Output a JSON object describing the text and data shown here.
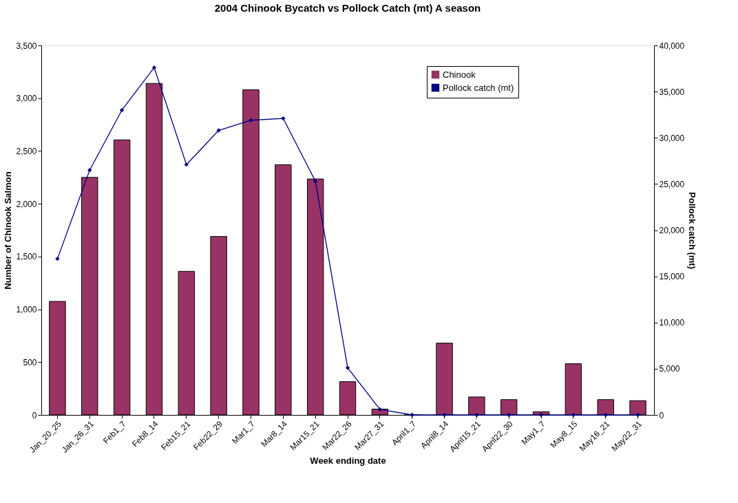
{
  "chart_data": {
    "type": "bar",
    "title": "2004 Chinook Bycatch vs Pollock Catch (mt) A season",
    "xlabel": "Week ending date",
    "ylabel": "Number of Chinook Salmon",
    "y2label": "Pollock catch (mt)",
    "categories": [
      "Jan_20_25",
      "Jan_26_31",
      "Feb1_7",
      "Feb8_14",
      "Feb15_21",
      "Feb22_29",
      "Mar1_7",
      "Mar8_14",
      "Mar15_21",
      "Mar22_26",
      "Mar27_31",
      "April1_7",
      "April8_14",
      "April15_21",
      "April22_30",
      "May1_7",
      "May8_15",
      "May16_21",
      "May22_31"
    ],
    "series": [
      {
        "name": "Chinook",
        "color": "#993366",
        "values": [
          1075,
          2250,
          2605,
          3140,
          1360,
          1690,
          3080,
          2370,
          2235,
          315,
          55,
          0,
          680,
          170,
          145,
          30,
          485,
          145,
          135
        ]
      },
      {
        "name": "Pollock catch (mt)",
        "type": "line",
        "axis": "y2",
        "color": "#000080",
        "marker": "diamond",
        "values": [
          16900,
          26500,
          33000,
          37600,
          27100,
          30800,
          31900,
          32100,
          25300,
          5100,
          600,
          0,
          0,
          0,
          0,
          0,
          0,
          0,
          0
        ]
      }
    ],
    "ylim": [
      0,
      3500
    ],
    "yticks": [
      0,
      500,
      {
        "value": 1000,
        "label": "1,000"
      },
      {
        "value": 1500,
        "label": "1,500"
      },
      {
        "value": 2000,
        "label": "2,000"
      },
      {
        "value": 2500,
        "label": "2,500"
      },
      {
        "value": 3000,
        "label": "3,000"
      },
      {
        "value": 3500,
        "label": "3,500"
      }
    ],
    "y2lim": [
      0,
      40000
    ],
    "y2ticks": [
      0,
      {
        "value": 5000,
        "label": "5,000"
      },
      {
        "value": 10000,
        "label": "10,000"
      },
      {
        "value": 15000,
        "label": "15,000"
      },
      {
        "value": 20000,
        "label": "20,000"
      },
      {
        "value": 25000,
        "label": "25,000"
      },
      {
        "value": 30000,
        "label": "30,000"
      },
      {
        "value": 35000,
        "label": "35,000"
      },
      {
        "value": 40000,
        "label": "40,000"
      }
    ],
    "grid": false,
    "legend": "top right"
  }
}
